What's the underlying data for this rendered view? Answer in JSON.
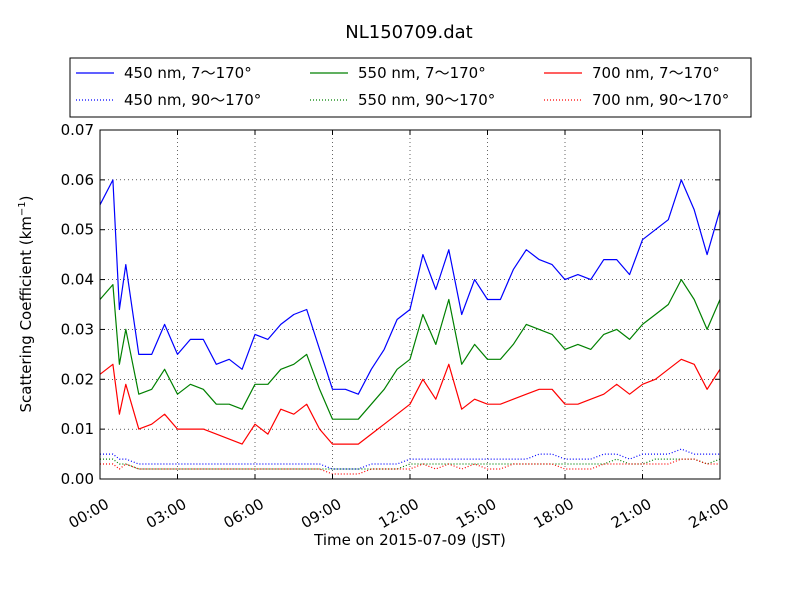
{
  "chart_data": {
    "type": "line",
    "title": "NL150709.dat",
    "xlabel": "Time on 2015-07-09 (JST)",
    "ylabel": "Scattering Coefficient (km",
    "ylabel_sup": "−1",
    "ylabel_close": ")",
    "xlim": [
      "2015-07-09 00:00",
      "2015-07-10 00:00"
    ],
    "ylim": [
      0,
      0.07
    ],
    "grid": true,
    "legend_position": "top",
    "x_tick_labels": [
      "00:00",
      "03:00",
      "06:00",
      "09:00",
      "12:00",
      "15:00",
      "18:00",
      "21:00",
      "24:00"
    ],
    "y_tick_labels": [
      "0.00",
      "0.01",
      "0.02",
      "0.03",
      "0.04",
      "0.05",
      "0.06",
      "0.07"
    ],
    "x_times": [
      "00:00",
      "00:30",
      "00:45",
      "01:00",
      "01:30",
      "02:00",
      "02:30",
      "03:00",
      "03:30",
      "04:00",
      "04:30",
      "05:00",
      "05:30",
      "06:00",
      "06:30",
      "07:00",
      "07:30",
      "08:00",
      "08:30",
      "09:00",
      "09:30",
      "10:00",
      "10:30",
      "11:00",
      "11:30",
      "12:00",
      "12:30",
      "13:00",
      "13:30",
      "14:00",
      "14:30",
      "15:00",
      "15:30",
      "16:00",
      "16:30",
      "17:00",
      "17:30",
      "18:00",
      "18:30",
      "19:00",
      "19:30",
      "20:00",
      "20:30",
      "21:00",
      "21:30",
      "22:00",
      "22:30",
      "23:00",
      "23:30",
      "24:00"
    ],
    "series": [
      {
        "name": "450 nm, 7～170°",
        "color": "#0000ff",
        "style": "solid",
        "values": [
          0.055,
          0.06,
          0.034,
          0.043,
          0.025,
          0.025,
          0.031,
          0.025,
          0.028,
          0.028,
          0.023,
          0.024,
          0.022,
          0.029,
          0.028,
          0.031,
          0.033,
          0.034,
          0.026,
          0.018,
          0.018,
          0.017,
          0.022,
          0.026,
          0.032,
          0.034,
          0.045,
          0.038,
          0.046,
          0.033,
          0.04,
          0.036,
          0.036,
          0.042,
          0.046,
          0.044,
          0.043,
          0.04,
          0.041,
          0.04,
          0.044,
          0.044,
          0.041,
          0.048,
          0.05,
          0.052,
          0.06,
          0.054,
          0.045,
          0.054
        ]
      },
      {
        "name": "450 nm, 90～170°",
        "color": "#0000ff",
        "style": "dotted",
        "values": [
          0.005,
          0.005,
          0.004,
          0.004,
          0.003,
          0.003,
          0.003,
          0.003,
          0.003,
          0.003,
          0.003,
          0.003,
          0.003,
          0.003,
          0.003,
          0.003,
          0.003,
          0.003,
          0.003,
          0.002,
          0.002,
          0.002,
          0.003,
          0.003,
          0.003,
          0.004,
          0.004,
          0.004,
          0.004,
          0.004,
          0.004,
          0.004,
          0.004,
          0.004,
          0.004,
          0.005,
          0.005,
          0.004,
          0.004,
          0.004,
          0.005,
          0.005,
          0.004,
          0.005,
          0.005,
          0.005,
          0.006,
          0.005,
          0.005,
          0.005
        ]
      },
      {
        "name": "550 nm, 7～170°",
        "color": "#008000",
        "style": "solid",
        "values": [
          0.036,
          0.039,
          0.023,
          0.03,
          0.017,
          0.018,
          0.022,
          0.017,
          0.019,
          0.018,
          0.015,
          0.015,
          0.014,
          0.019,
          0.019,
          0.022,
          0.023,
          0.025,
          0.018,
          0.012,
          0.012,
          0.012,
          0.015,
          0.018,
          0.022,
          0.024,
          0.033,
          0.027,
          0.036,
          0.023,
          0.027,
          0.024,
          0.024,
          0.027,
          0.031,
          0.03,
          0.029,
          0.026,
          0.027,
          0.026,
          0.029,
          0.03,
          0.028,
          0.031,
          0.033,
          0.035,
          0.04,
          0.036,
          0.03,
          0.036
        ]
      },
      {
        "name": "550 nm, 90～170°",
        "color": "#008000",
        "style": "dotted",
        "values": [
          0.004,
          0.004,
          0.003,
          0.003,
          0.002,
          0.002,
          0.002,
          0.002,
          0.002,
          0.002,
          0.002,
          0.002,
          0.002,
          0.002,
          0.002,
          0.002,
          0.002,
          0.002,
          0.002,
          0.002,
          0.002,
          0.002,
          0.002,
          0.002,
          0.002,
          0.003,
          0.003,
          0.003,
          0.003,
          0.003,
          0.003,
          0.003,
          0.003,
          0.003,
          0.003,
          0.003,
          0.003,
          0.003,
          0.003,
          0.003,
          0.003,
          0.004,
          0.003,
          0.003,
          0.004,
          0.004,
          0.004,
          0.004,
          0.003,
          0.004
        ]
      },
      {
        "name": "700 nm, 7～170°",
        "color": "#ff0000",
        "style": "solid",
        "values": [
          0.021,
          0.023,
          0.013,
          0.019,
          0.01,
          0.011,
          0.013,
          0.01,
          0.01,
          0.01,
          0.009,
          0.008,
          0.007,
          0.011,
          0.009,
          0.014,
          0.013,
          0.015,
          0.01,
          0.007,
          0.007,
          0.007,
          0.009,
          0.011,
          0.013,
          0.015,
          0.02,
          0.016,
          0.023,
          0.014,
          0.016,
          0.015,
          0.015,
          0.016,
          0.017,
          0.018,
          0.018,
          0.015,
          0.015,
          0.016,
          0.017,
          0.019,
          0.017,
          0.019,
          0.02,
          0.022,
          0.024,
          0.023,
          0.018,
          0.022
        ]
      },
      {
        "name": "700 nm, 90～170°",
        "color": "#ff0000",
        "style": "dotted",
        "values": [
          0.003,
          0.003,
          0.002,
          0.003,
          0.002,
          0.002,
          0.002,
          0.002,
          0.002,
          0.002,
          0.002,
          0.002,
          0.002,
          0.002,
          0.002,
          0.002,
          0.002,
          0.002,
          0.002,
          0.001,
          0.001,
          0.001,
          0.002,
          0.002,
          0.002,
          0.002,
          0.003,
          0.002,
          0.003,
          0.002,
          0.003,
          0.002,
          0.002,
          0.003,
          0.003,
          0.003,
          0.003,
          0.002,
          0.002,
          0.002,
          0.003,
          0.003,
          0.003,
          0.003,
          0.003,
          0.003,
          0.004,
          0.004,
          0.003,
          0.003
        ]
      }
    ]
  }
}
